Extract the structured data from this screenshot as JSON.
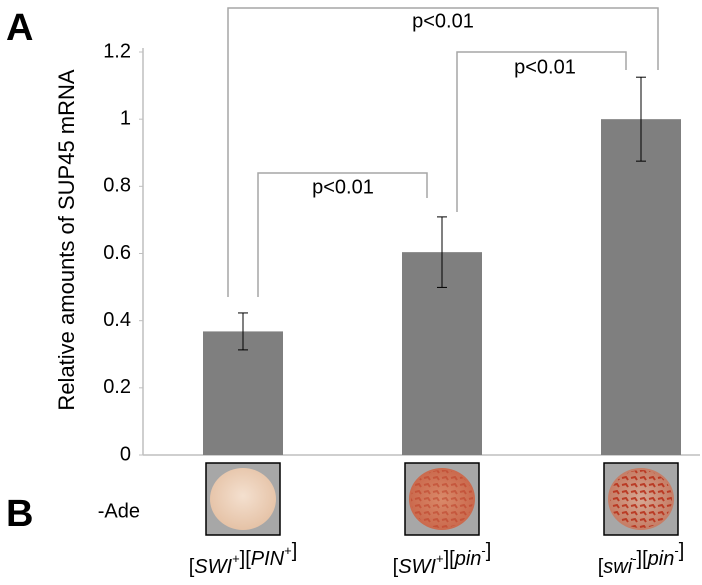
{
  "chart_data": {
    "type": "bar",
    "panel_labels": [
      "A",
      "B"
    ],
    "y_label": "Relative amounts of SUP45 mRNA",
    "categories": [
      "[SWI+][PIN+]",
      "[SWI+][pin-]",
      "[swi-][pin-]"
    ],
    "values": [
      0.368,
      0.604,
      1.0
    ],
    "errors": [
      0.055,
      0.105,
      0.125
    ],
    "color": "#7f7f7f",
    "ylim": [
      0,
      1.2
    ],
    "yticks": [
      0,
      0.2,
      0.4,
      0.6,
      0.8,
      1,
      1.2
    ],
    "grid": false,
    "comparisons": [
      {
        "pair": [
          0,
          1
        ],
        "label": "p<0.01"
      },
      {
        "pair": [
          1,
          2
        ],
        "label": "p<0.01"
      },
      {
        "pair": [
          0,
          2
        ],
        "label": "p<0.01"
      }
    ],
    "plate_label": "-Ade"
  }
}
